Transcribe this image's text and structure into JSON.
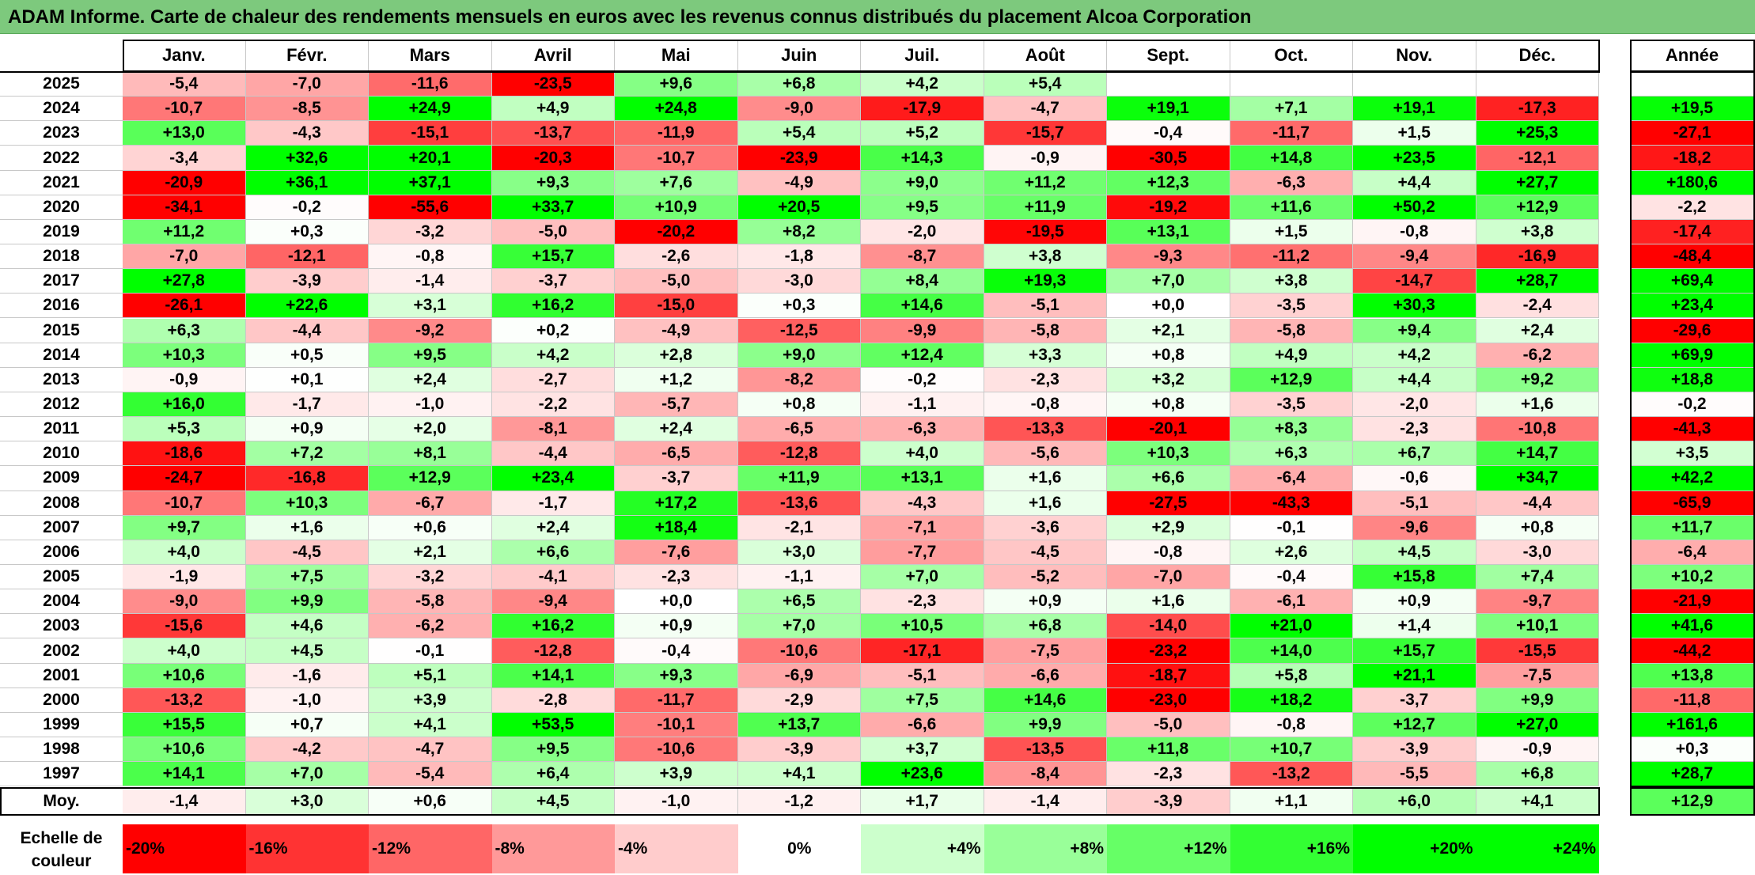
{
  "title": "ADAM Informe. Carte de chaleur des rendements mensuels en euros avec les revenus connus distribués du placement Alcoa Corporation",
  "chart_data": {
    "type": "heatmap",
    "columns": [
      "Janv.",
      "Févr.",
      "Mars",
      "Avril",
      "Mai",
      "Juin",
      "Juil.",
      "Août",
      "Sept.",
      "Oct.",
      "Nov.",
      "Déc."
    ],
    "annual_header": "Année",
    "rows": [
      {
        "year": "2025",
        "values": [
          "-5,4",
          "-7,0",
          "-11,6",
          "-23,5",
          "+9,6",
          "+6,8",
          "+4,2",
          "+5,4",
          "",
          "",
          "",
          ""
        ],
        "annual": ""
      },
      {
        "year": "2024",
        "values": [
          "-10,7",
          "-8,5",
          "+24,9",
          "+4,9",
          "+24,8",
          "-9,0",
          "-17,9",
          "-4,7",
          "+19,1",
          "+7,1",
          "+19,1",
          "-17,3"
        ],
        "annual": "+19,5"
      },
      {
        "year": "2023",
        "values": [
          "+13,0",
          "-4,3",
          "-15,1",
          "-13,7",
          "-11,9",
          "+5,4",
          "+5,2",
          "-15,7",
          "-0,4",
          "-11,7",
          "+1,5",
          "+25,3"
        ],
        "annual": "-27,1"
      },
      {
        "year": "2022",
        "values": [
          "-3,4",
          "+32,6",
          "+20,1",
          "-20,3",
          "-10,7",
          "-23,9",
          "+14,3",
          "-0,9",
          "-30,5",
          "+14,8",
          "+23,5",
          "-12,1"
        ],
        "annual": "-18,2"
      },
      {
        "year": "2021",
        "values": [
          "-20,9",
          "+36,1",
          "+37,1",
          "+9,3",
          "+7,6",
          "-4,9",
          "+9,0",
          "+11,2",
          "+12,3",
          "-6,3",
          "+4,4",
          "+27,7"
        ],
        "annual": "+180,6"
      },
      {
        "year": "2020",
        "values": [
          "-34,1",
          "-0,2",
          "-55,6",
          "+33,7",
          "+10,9",
          "+20,5",
          "+9,5",
          "+11,9",
          "-19,2",
          "+11,6",
          "+50,2",
          "+12,9"
        ],
        "annual": "-2,2"
      },
      {
        "year": "2019",
        "values": [
          "+11,2",
          "+0,3",
          "-3,2",
          "-5,0",
          "-20,2",
          "+8,2",
          "-2,0",
          "-19,5",
          "+13,1",
          "+1,5",
          "-0,8",
          "+3,8"
        ],
        "annual": "-17,4"
      },
      {
        "year": "2018",
        "values": [
          "-7,0",
          "-12,1",
          "-0,8",
          "+15,7",
          "-2,6",
          "-1,8",
          "-8,7",
          "+3,8",
          "-9,3",
          "-11,2",
          "-9,4",
          "-16,9"
        ],
        "annual": "-48,4"
      },
      {
        "year": "2017",
        "values": [
          "+27,8",
          "-3,9",
          "-1,4",
          "-3,7",
          "-5,0",
          "-3,0",
          "+8,4",
          "+19,3",
          "+7,0",
          "+3,8",
          "-14,7",
          "+28,7"
        ],
        "annual": "+69,4"
      },
      {
        "year": "2016",
        "values": [
          "-26,1",
          "+22,6",
          "+3,1",
          "+16,2",
          "-15,0",
          "+0,3",
          "+14,6",
          "-5,1",
          "+0,0",
          "-3,5",
          "+30,3",
          "-2,4"
        ],
        "annual": "+23,4"
      },
      {
        "year": "2015",
        "values": [
          "+6,3",
          "-4,4",
          "-9,2",
          "+0,2",
          "-4,9",
          "-12,5",
          "-9,9",
          "-5,8",
          "+2,1",
          "-5,8",
          "+9,4",
          "+2,4"
        ],
        "annual": "-29,6"
      },
      {
        "year": "2014",
        "values": [
          "+10,3",
          "+0,5",
          "+9,5",
          "+4,2",
          "+2,8",
          "+9,0",
          "+12,4",
          "+3,3",
          "+0,8",
          "+4,9",
          "+4,2",
          "-6,2"
        ],
        "annual": "+69,9"
      },
      {
        "year": "2013",
        "values": [
          "-0,9",
          "+0,1",
          "+2,4",
          "-2,7",
          "+1,2",
          "-8,2",
          "-0,2",
          "-2,3",
          "+3,2",
          "+12,9",
          "+4,4",
          "+9,2"
        ],
        "annual": "+18,8"
      },
      {
        "year": "2012",
        "values": [
          "+16,0",
          "-1,7",
          "-1,0",
          "-2,2",
          "-5,7",
          "+0,8",
          "-1,1",
          "-0,8",
          "+0,8",
          "-3,5",
          "-2,0",
          "+1,6"
        ],
        "annual": "-0,2"
      },
      {
        "year": "2011",
        "values": [
          "+5,3",
          "+0,9",
          "+2,0",
          "-8,1",
          "+2,4",
          "-6,5",
          "-6,3",
          "-13,3",
          "-20,1",
          "+8,3",
          "-2,3",
          "-10,8"
        ],
        "annual": "-41,3"
      },
      {
        "year": "2010",
        "values": [
          "-18,6",
          "+7,2",
          "+8,1",
          "-4,4",
          "-6,5",
          "-12,8",
          "+4,0",
          "-5,6",
          "+10,3",
          "+6,3",
          "+6,7",
          "+14,7"
        ],
        "annual": "+3,5"
      },
      {
        "year": "2009",
        "values": [
          "-24,7",
          "-16,8",
          "+12,9",
          "+23,4",
          "-3,7",
          "+11,9",
          "+13,1",
          "+1,6",
          "+6,6",
          "-6,4",
          "-0,6",
          "+34,7"
        ],
        "annual": "+42,2"
      },
      {
        "year": "2008",
        "values": [
          "-10,7",
          "+10,3",
          "-6,7",
          "-1,7",
          "+17,2",
          "-13,6",
          "-4,3",
          "+1,6",
          "-27,5",
          "-43,3",
          "-5,1",
          "-4,4"
        ],
        "annual": "-65,9"
      },
      {
        "year": "2007",
        "values": [
          "+9,7",
          "+1,6",
          "+0,6",
          "+2,4",
          "+18,4",
          "-2,1",
          "-7,1",
          "-3,6",
          "+2,9",
          "-0,1",
          "-9,6",
          "+0,8"
        ],
        "annual": "+11,7"
      },
      {
        "year": "2006",
        "values": [
          "+4,0",
          "-4,5",
          "+2,1",
          "+6,6",
          "-7,6",
          "+3,0",
          "-7,7",
          "-4,5",
          "-0,8",
          "+2,6",
          "+4,5",
          "-3,0"
        ],
        "annual": "-6,4"
      },
      {
        "year": "2005",
        "values": [
          "-1,9",
          "+7,5",
          "-3,2",
          "-4,1",
          "-2,3",
          "-1,1",
          "+7,0",
          "-5,2",
          "-7,0",
          "-0,4",
          "+15,8",
          "+7,4"
        ],
        "annual": "+10,2"
      },
      {
        "year": "2004",
        "values": [
          "-9,0",
          "+9,9",
          "-5,8",
          "-9,4",
          "+0,0",
          "+6,5",
          "-2,3",
          "+0,9",
          "+1,6",
          "-6,1",
          "+0,9",
          "-9,7"
        ],
        "annual": "-21,9"
      },
      {
        "year": "2003",
        "values": [
          "-15,6",
          "+4,6",
          "-6,2",
          "+16,2",
          "+0,9",
          "+7,0",
          "+10,5",
          "+6,8",
          "-14,0",
          "+21,0",
          "+1,4",
          "+10,1"
        ],
        "annual": "+41,6"
      },
      {
        "year": "2002",
        "values": [
          "+4,0",
          "+4,5",
          "-0,1",
          "-12,8",
          "-0,4",
          "-10,6",
          "-17,1",
          "-7,5",
          "-23,2",
          "+14,0",
          "+15,7",
          "-15,5"
        ],
        "annual": "-44,2"
      },
      {
        "year": "2001",
        "values": [
          "+10,6",
          "-1,6",
          "+5,1",
          "+14,1",
          "+9,3",
          "-6,9",
          "-5,1",
          "-6,6",
          "-18,7",
          "+5,8",
          "+21,1",
          "-7,5"
        ],
        "annual": "+13,8"
      },
      {
        "year": "2000",
        "values": [
          "-13,2",
          "-1,0",
          "+3,9",
          "-2,8",
          "-11,7",
          "-2,9",
          "+7,5",
          "+14,6",
          "-23,0",
          "+18,2",
          "-3,7",
          "+9,9"
        ],
        "annual": "-11,8"
      },
      {
        "year": "1999",
        "values": [
          "+15,5",
          "+0,7",
          "+4,1",
          "+53,5",
          "-10,1",
          "+13,7",
          "-6,6",
          "+9,9",
          "-5,0",
          "-0,8",
          "+12,7",
          "+27,0"
        ],
        "annual": "+161,6"
      },
      {
        "year": "1998",
        "values": [
          "+10,6",
          "-4,2",
          "-4,7",
          "+9,5",
          "-10,6",
          "-3,9",
          "+3,7",
          "-13,5",
          "+11,8",
          "+10,7",
          "-3,9",
          "-0,9"
        ],
        "annual": "+0,3"
      },
      {
        "year": "1997",
        "values": [
          "+14,1",
          "+7,0",
          "-5,4",
          "+6,4",
          "+3,9",
          "+4,1",
          "+23,6",
          "-8,4",
          "-2,3",
          "-13,2",
          "-5,5",
          "+6,8"
        ],
        "annual": "+28,7"
      }
    ],
    "average": {
      "label": "Moy.",
      "values": [
        "-1,4",
        "+3,0",
        "+0,6",
        "+4,5",
        "-1,0",
        "-1,2",
        "+1,7",
        "-1,4",
        "-3,9",
        "+1,1",
        "+6,0",
        "+4,1"
      ],
      "annual": "+12,9"
    },
    "color_scale": {
      "label": "Echelle de couleur",
      "stops": [
        {
          "label": "-20%",
          "value": -20,
          "color": "#ff0000"
        },
        {
          "label": "-16%",
          "value": -16,
          "color": "#ff3333"
        },
        {
          "label": "-12%",
          "value": -12,
          "color": "#ff6666"
        },
        {
          "label": "-8%",
          "value": -8,
          "color": "#ff9999"
        },
        {
          "label": "-4%",
          "value": -4,
          "color": "#ffcccc"
        },
        {
          "label": "0%",
          "value": 0,
          "color": "#ffffff"
        },
        {
          "label": "+4%",
          "value": 4,
          "color": "#ccffcc"
        },
        {
          "label": "+8%",
          "value": 8,
          "color": "#99ff99"
        },
        {
          "label": "+12%",
          "value": 12,
          "color": "#66ff66"
        },
        {
          "label": "+16%",
          "value": 16,
          "color": "#33ff33"
        },
        {
          "label": "+20%",
          "value": 20,
          "color": "#00ff00"
        },
        {
          "label": "+24%",
          "value": 24,
          "color": "#00ff00"
        }
      ]
    }
  }
}
